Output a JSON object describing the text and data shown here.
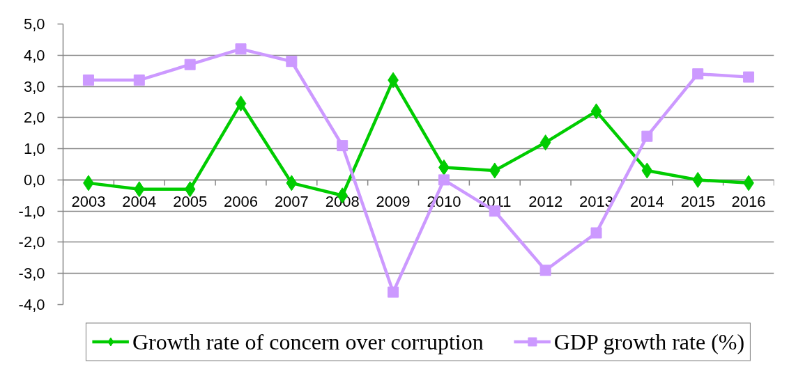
{
  "chart_data": {
    "type": "line",
    "categories": [
      "2003",
      "2004",
      "2005",
      "2006",
      "2007",
      "2008",
      "2009",
      "2010",
      "2011",
      "2012",
      "2013",
      "2014",
      "2015",
      "2016"
    ],
    "series": [
      {
        "name": "Growth rate of concern over corruption",
        "color": "#00cc00",
        "marker": "diamond",
        "values": [
          -0.1,
          -0.3,
          -0.3,
          2.45,
          -0.1,
          -0.5,
          3.2,
          0.4,
          0.3,
          1.2,
          2.2,
          0.3,
          0.0,
          -0.1
        ]
      },
      {
        "name": "GDP growth rate (%)",
        "color": "#cc99ff",
        "marker": "square",
        "values": [
          3.2,
          3.2,
          3.7,
          4.2,
          3.8,
          1.1,
          -3.6,
          0.0,
          -1.0,
          -2.9,
          -1.7,
          1.4,
          3.4,
          3.3
        ]
      }
    ],
    "ylim": [
      -4,
      5
    ],
    "yticks": [
      {
        "value": -4,
        "label": "-4,0"
      },
      {
        "value": -3,
        "label": "-3,0"
      },
      {
        "value": -2,
        "label": "-2,0"
      },
      {
        "value": -1,
        "label": "-1,0"
      },
      {
        "value": 0,
        "label": "0,0"
      },
      {
        "value": 1,
        "label": "1,0"
      },
      {
        "value": 2,
        "label": "2,0"
      },
      {
        "value": 3,
        "label": "3,0"
      },
      {
        "value": 4,
        "label": "4,0"
      },
      {
        "value": 5,
        "label": "5,0"
      }
    ],
    "grid": "y",
    "legend": "bottom",
    "line_style": "solid"
  }
}
